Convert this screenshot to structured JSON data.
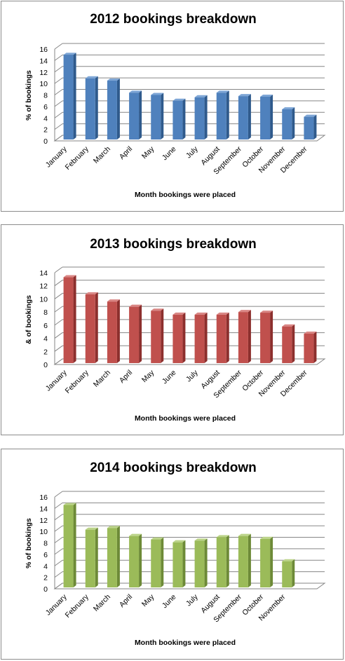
{
  "chart_data": [
    {
      "type": "bar",
      "title": "2012 bookings breakdown",
      "xlabel": "Month bookings  were placed",
      "ylabel": "% of bookings",
      "ylim": [
        0,
        16
      ],
      "yticks": [
        0,
        2,
        4,
        6,
        8,
        10,
        12,
        14,
        16
      ],
      "grid": true,
      "categories": [
        "January",
        "February",
        "March",
        "April",
        "May",
        "June",
        "July",
        "August",
        "September",
        "October",
        "November",
        "December"
      ],
      "values": [
        15.0,
        10.9,
        10.5,
        8.4,
        8.0,
        7.0,
        7.6,
        8.4,
        7.8,
        7.7,
        5.5,
        4.2
      ],
      "colors": {
        "front": "#4f81bd",
        "side": "#2f5a8c",
        "top": "#7ea6d6"
      }
    },
    {
      "type": "bar",
      "title": "2013 bookings breakdown",
      "xlabel": "Month bookings  were placed",
      "ylabel": "& of bookings",
      "ylim": [
        0,
        14
      ],
      "yticks": [
        0,
        2,
        4,
        6,
        8,
        10,
        12,
        14
      ],
      "grid": true,
      "categories": [
        "January",
        "February",
        "March",
        "April",
        "May",
        "June",
        "July",
        "August",
        "September",
        "October",
        "November",
        "December"
      ],
      "values": [
        13.3,
        10.7,
        9.6,
        8.8,
        8.2,
        7.6,
        7.6,
        7.6,
        8.0,
        7.9,
        5.8,
        4.7
      ],
      "colors": {
        "front": "#c0504d",
        "side": "#8c2f2d",
        "top": "#d98684"
      }
    },
    {
      "type": "bar",
      "title": "2014 bookings breakdown",
      "xlabel": "Month bookings  were placed",
      "ylabel": "% of bookings",
      "ylim": [
        0,
        16
      ],
      "yticks": [
        0,
        2,
        4,
        6,
        8,
        10,
        12,
        14,
        16
      ],
      "grid": true,
      "categories": [
        "January",
        "February",
        "March",
        "April",
        "May",
        "June",
        "July",
        "August",
        "September",
        "October",
        "November"
      ],
      "values": [
        14.6,
        10.3,
        10.6,
        9.2,
        8.6,
        8.1,
        8.4,
        9.0,
        9.2,
        8.7,
        4.8
      ],
      "colors": {
        "front": "#9bbb59",
        "side": "#6d8a37",
        "top": "#bcd48a"
      }
    }
  ]
}
